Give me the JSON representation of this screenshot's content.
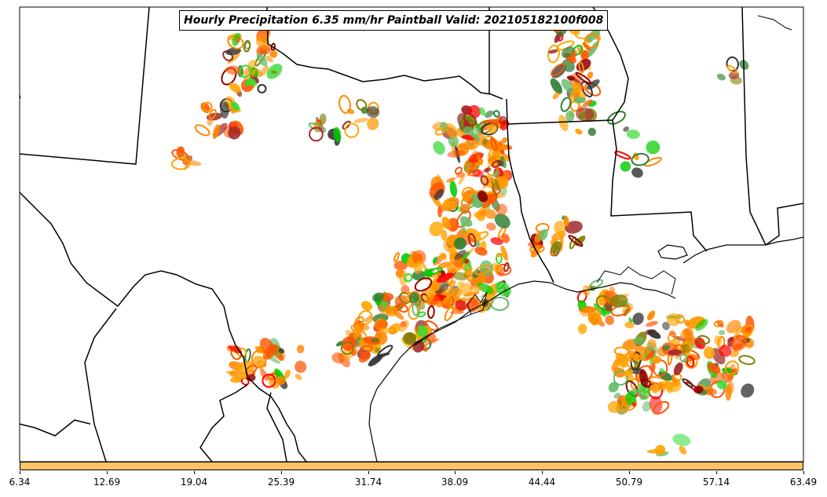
{
  "title": "Hourly Precipitation 6.35 mm/hr Paintball Valid: 202105182100f008",
  "colorbar": {
    "color": "#ffc266",
    "ticks": [
      "6.34",
      "12.69",
      "19.04",
      "25.39",
      "31.74",
      "38.09",
      "44.44",
      "50.79",
      "57.14",
      "63.49"
    ]
  },
  "member_colors": [
    "#00cc00",
    "#33dd33",
    "#ff8800",
    "#ff9900",
    "#ff5500",
    "#ff0000",
    "#8b0000",
    "#a52a2a",
    "#808000",
    "#2e7d32",
    "#333333",
    "#66bb6a"
  ],
  "map_region": "Texas / Louisiana Gulf Coast"
}
